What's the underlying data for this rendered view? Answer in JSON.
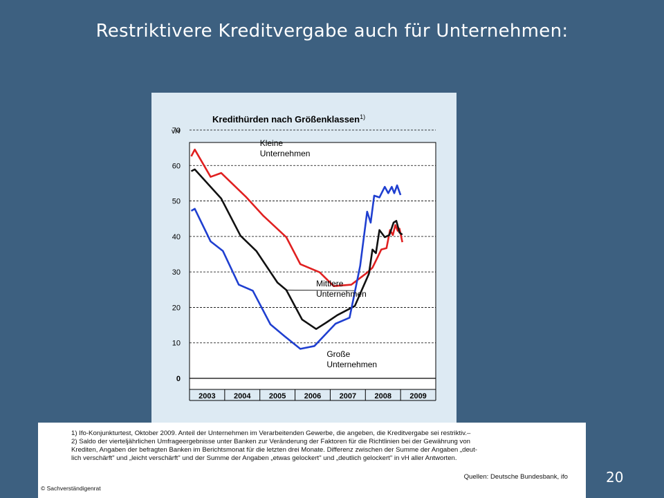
{
  "slide": {
    "title": "Restriktivere Kreditvergabe auch für Unternehmen:",
    "page_number": "20"
  },
  "footnotes": {
    "lines": [
      "1) Ifo-Konjunkturtest, Oktober 2009. Anteil der Unternehmen im Verarbeitenden Gewerbe, die angeben, die Kreditvergabe sei restriktiv.–",
      "2) Saldo der vierteljährlichen Umfrageergebnisse unter Banken zur Veränderung der Faktoren für die Richtlinien bei der Gewährung von",
      "Krediten, Angaben der befragten Banken im Berichtsmonat für die letzten drei Monate. Differenz zwischen der Summe der Angaben „deut-",
      "lich verschärft\" und „leicht verschärft\" und der Summe der Angaben „etwas gelockert\" und „deutlich gelockert\" in vH aller Antworten."
    ],
    "source": "Quellen: Deutsche Bundesbank, ifo",
    "copyright": "© Sachverständigenrat"
  },
  "chart_data": {
    "type": "line",
    "title": "Kredithürden nach Größenklassen",
    "title_superscript": "1)",
    "ylabel": "vH",
    "ylim": [
      0,
      70
    ],
    "yticks": [
      "0",
      "10",
      "20",
      "30",
      "40",
      "50",
      "60",
      "70"
    ],
    "xlim": [
      2003,
      2010
    ],
    "x_categories": [
      "2003",
      "2004",
      "2005",
      "2006",
      "2007",
      "2008",
      "2009"
    ],
    "grid": "horizontal dashed",
    "series": [
      {
        "name": "Kleine Unternehmen",
        "color": "#e02020",
        "label_lines": [
          "Kleine",
          "Unternehmen"
        ],
        "label_anchor": [
          2005.0,
          65.5
        ],
        "points": [
          [
            2003.05,
            62.6
          ],
          [
            2003.15,
            64.5
          ],
          [
            2003.6,
            56.8
          ],
          [
            2003.9,
            57.9
          ],
          [
            2004.6,
            51.2
          ],
          [
            2005.1,
            45.8
          ],
          [
            2005.75,
            39.8
          ],
          [
            2006.15,
            32.2
          ],
          [
            2006.7,
            29.9
          ],
          [
            2007.1,
            26.0
          ],
          [
            2007.6,
            26.4
          ],
          [
            2008.05,
            29.8
          ],
          [
            2008.2,
            31.2
          ],
          [
            2008.35,
            34.2
          ],
          [
            2008.45,
            36.3
          ],
          [
            2008.6,
            36.7
          ],
          [
            2008.7,
            41.8
          ],
          [
            2008.78,
            40.4
          ],
          [
            2008.85,
            43.2
          ],
          [
            2008.92,
            41.6
          ],
          [
            2008.97,
            42.2
          ],
          [
            2009.05,
            38.4
          ]
        ]
      },
      {
        "name": "Mittlere Unternehmen",
        "color": "#111111",
        "label_lines": [
          "Mittlere",
          "Unternehmen"
        ],
        "label_anchor": [
          2006.6,
          25.9
        ],
        "points": [
          [
            2003.05,
            58.4
          ],
          [
            2003.15,
            58.9
          ],
          [
            2003.9,
            50.7
          ],
          [
            2004.45,
            40.2
          ],
          [
            2004.9,
            35.9
          ],
          [
            2005.5,
            27.0
          ],
          [
            2005.75,
            24.9
          ],
          [
            2006.2,
            16.6
          ],
          [
            2006.6,
            13.9
          ],
          [
            2006.9,
            15.8
          ],
          [
            2007.2,
            17.8
          ],
          [
            2007.7,
            20.4
          ],
          [
            2008.1,
            29.5
          ],
          [
            2008.2,
            36.3
          ],
          [
            2008.3,
            35.3
          ],
          [
            2008.4,
            41.8
          ],
          [
            2008.55,
            39.8
          ],
          [
            2008.68,
            40.4
          ],
          [
            2008.8,
            43.9
          ],
          [
            2008.88,
            44.4
          ],
          [
            2008.97,
            41.1
          ],
          [
            2009.05,
            40.5
          ]
        ]
      },
      {
        "name": "Große Unternehmen",
        "color": "#1f3fd0",
        "label_lines": [
          "Große",
          "Unternehmen"
        ],
        "label_anchor": [
          2006.9,
          6.0
        ],
        "points": [
          [
            2003.05,
            47.2
          ],
          [
            2003.15,
            47.8
          ],
          [
            2003.6,
            38.6
          ],
          [
            2003.95,
            35.9
          ],
          [
            2004.4,
            26.4
          ],
          [
            2004.8,
            24.7
          ],
          [
            2005.3,
            15.2
          ],
          [
            2005.7,
            11.9
          ],
          [
            2006.15,
            8.3
          ],
          [
            2006.55,
            9.1
          ],
          [
            2007.15,
            15.4
          ],
          [
            2007.55,
            17.1
          ],
          [
            2007.85,
            31.7
          ],
          [
            2008.05,
            47.0
          ],
          [
            2008.15,
            43.9
          ],
          [
            2008.25,
            51.5
          ],
          [
            2008.4,
            51.0
          ],
          [
            2008.55,
            54.0
          ],
          [
            2008.65,
            52.2
          ],
          [
            2008.75,
            54.0
          ],
          [
            2008.82,
            52.2
          ],
          [
            2008.9,
            54.4
          ],
          [
            2009.0,
            51.7
          ]
        ]
      }
    ]
  }
}
